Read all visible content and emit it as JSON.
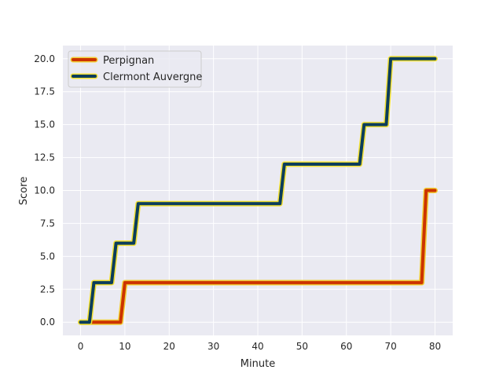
{
  "chart_data": {
    "type": "line",
    "title": "",
    "xlabel": "Minute",
    "ylabel": "Score",
    "xlim": [
      -4,
      84
    ],
    "ylim": [
      -1,
      21
    ],
    "xticks": [
      0,
      10,
      20,
      30,
      40,
      50,
      60,
      70,
      80
    ],
    "yticks": [
      0.0,
      2.5,
      5.0,
      7.5,
      10.0,
      12.5,
      15.0,
      17.5,
      20.0
    ],
    "xtick_labels": [
      "0",
      "10",
      "20",
      "30",
      "40",
      "50",
      "60",
      "70",
      "80"
    ],
    "ytick_labels": [
      "0.0",
      "2.5",
      "5.0",
      "7.5",
      "10.0",
      "12.5",
      "15.0",
      "17.5",
      "20.0"
    ],
    "grid": true,
    "legend_position": "top-left",
    "background": "#eaeaf2",
    "series": [
      {
        "name": "Perpignan",
        "color": "#cc3300",
        "edge_color": "#f2cc33",
        "x": [
          0,
          9,
          10,
          77,
          78,
          80
        ],
        "y": [
          0,
          0,
          3,
          3,
          10,
          10
        ]
      },
      {
        "name": "Clermont Auvergne",
        "color": "#0b3d5c",
        "edge_color": "#f2e033",
        "x": [
          0,
          2,
          3,
          7,
          8,
          12,
          13,
          45,
          46,
          63,
          64,
          69,
          70,
          80
        ],
        "y": [
          0,
          0,
          3,
          3,
          6,
          6,
          9,
          9,
          12,
          12,
          15,
          15,
          20,
          20
        ]
      }
    ]
  }
}
